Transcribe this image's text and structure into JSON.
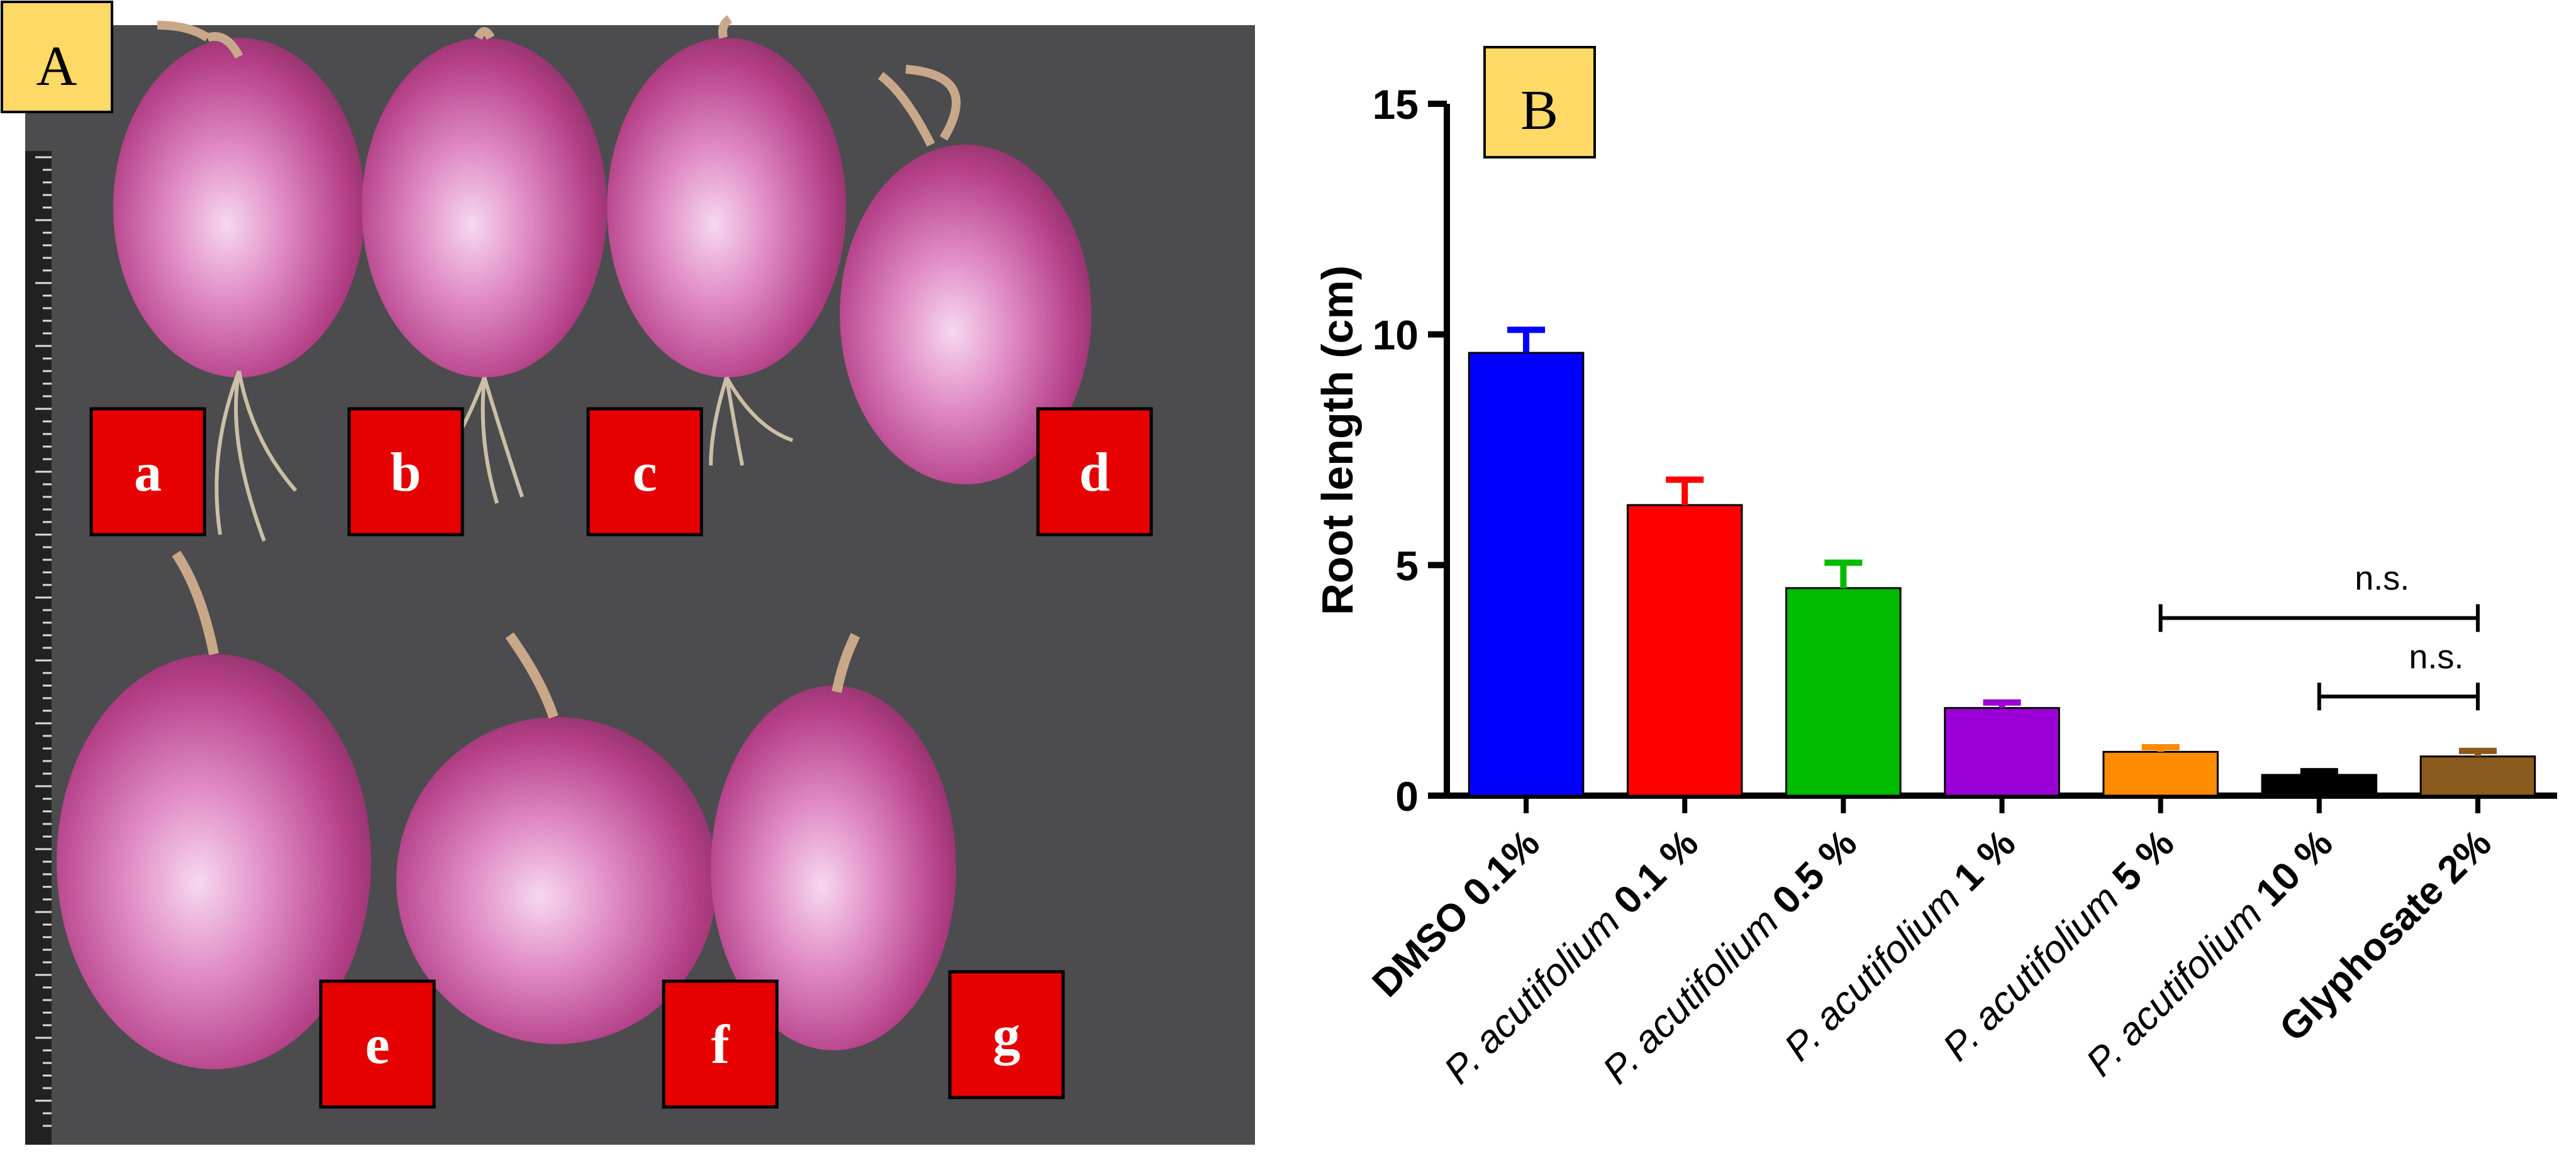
{
  "panel_a": {
    "panel_label": "A",
    "onion_labels": [
      "a",
      "b",
      "c",
      "d",
      "e",
      "f",
      "g"
    ],
    "colors": {
      "background": "#4c4c4f",
      "onion_body": "#b43f86",
      "onion_highlight": "#f6d6ee",
      "label_box": "#e60000",
      "panel_label_box": "#ffd966"
    }
  },
  "panel_b": {
    "panel_label": "B",
    "chart_data": {
      "type": "bar",
      "categories": [
        {
          "prefix": "",
          "italic": "",
          "suffix": "DMSO 0.1%"
        },
        {
          "prefix": "",
          "italic": "P. acutifolium",
          "suffix": "0.1 %"
        },
        {
          "prefix": "",
          "italic": "P. acutifolium",
          "suffix": "0.5 %"
        },
        {
          "prefix": "",
          "italic": "P. acutifolium",
          "suffix": "1 %"
        },
        {
          "prefix": "",
          "italic": "P. acutifolium",
          "suffix": "5 %"
        },
        {
          "prefix": "",
          "italic": "P. acutifolium",
          "suffix": "10 %"
        },
        {
          "prefix": "",
          "italic": "",
          "suffix": "Glyphosate 2%"
        }
      ],
      "values": [
        9.6,
        6.3,
        4.5,
        1.9,
        0.95,
        0.45,
        0.85
      ],
      "errors": [
        0.5,
        0.55,
        0.55,
        0.12,
        0.1,
        0.08,
        0.12
      ],
      "colors": [
        "#0000ff",
        "#ff0000",
        "#00bb00",
        "#9b00d6",
        "#ff8c00",
        "#000000",
        "#8b5a1e"
      ],
      "ylabel": "Root length (cm)",
      "xlabel": "",
      "ylim": [
        0,
        15
      ],
      "yticks": [
        0,
        5,
        10,
        15
      ],
      "annotations": [
        {
          "text": "n.s.",
          "from": 4,
          "to": 6,
          "level": 3.85
        },
        {
          "text": "n.s.",
          "from": 5,
          "to": 6,
          "level": 2.15
        }
      ]
    }
  }
}
